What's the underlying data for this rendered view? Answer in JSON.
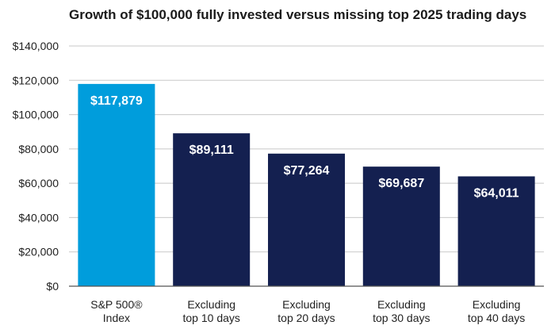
{
  "chart_data": {
    "type": "bar",
    "title": "Growth of $100,000 fully invested versus missing top 2025 trading days",
    "xlabel": "",
    "ylabel": "",
    "ylim": [
      0,
      140000
    ],
    "yticks": [
      "$0",
      "$20,000",
      "$40,000",
      "$60,000",
      "$80,000",
      "$100,000",
      "$120,000",
      "$140,000"
    ],
    "ytick_values": [
      0,
      20000,
      40000,
      60000,
      80000,
      100000,
      120000,
      140000
    ],
    "grid": true,
    "categories": [
      [
        "S&P 500®",
        "Index"
      ],
      [
        "Excluding",
        "top 10 days"
      ],
      [
        "Excluding",
        "top 20 days"
      ],
      [
        "Excluding",
        "top 30 days"
      ],
      [
        "Excluding",
        "top 40 days"
      ]
    ],
    "values": [
      117879,
      89111,
      77264,
      69687,
      64011
    ],
    "value_labels": [
      "$117,879",
      "$89,111",
      "$77,264",
      "$69,687",
      "$64,011"
    ],
    "colors": [
      "#009ddc",
      "#142050",
      "#142050",
      "#142050",
      "#142050"
    ]
  }
}
